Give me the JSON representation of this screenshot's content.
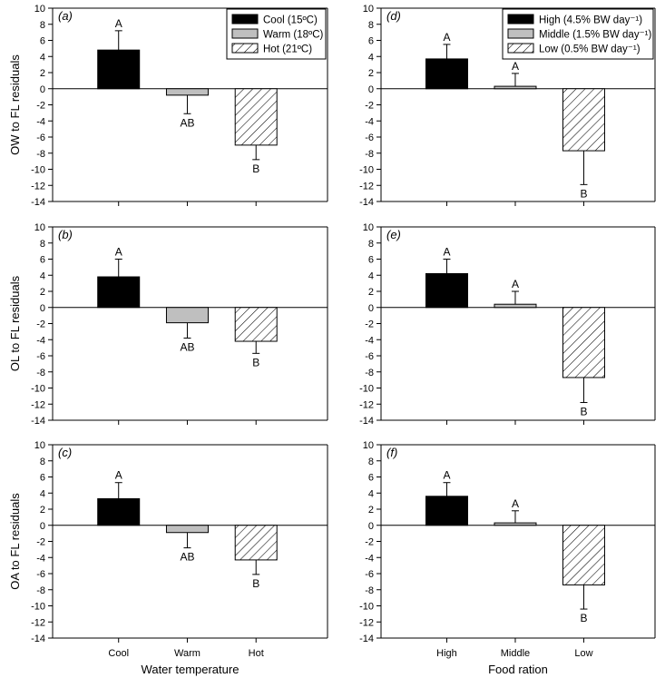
{
  "colors": {
    "series_fill": [
      "#000000",
      "#bfbfbf",
      "hatched"
    ],
    "axis": "#000000"
  },
  "chart_data": [
    {
      "type": "bar",
      "panel_label": "(a)",
      "ylabel": "OW to FL residuals",
      "xlabel": "",
      "categories": [
        "Cool",
        "Warm",
        "Hot"
      ],
      "show_xticklabels": false,
      "ylim": [
        -14,
        10
      ],
      "yticks": [
        10,
        8,
        6,
        4,
        2,
        0,
        -2,
        -4,
        -6,
        -8,
        -10,
        -12,
        -14
      ],
      "values": [
        4.8,
        -0.8,
        -7.0
      ],
      "errors": [
        2.4,
        2.3,
        1.8
      ],
      "letters": [
        "A",
        "AB",
        "B"
      ],
      "legend": [
        "Cool (15ºC)",
        "Warm (18ºC)",
        "Hot (21ºC)"
      ],
      "legend_position": "top-right",
      "grid": false
    },
    {
      "type": "bar",
      "panel_label": "(b)",
      "ylabel": "OL to FL residuals",
      "xlabel": "",
      "categories": [
        "Cool",
        "Warm",
        "Hot"
      ],
      "show_xticklabels": false,
      "ylim": [
        -14,
        10
      ],
      "yticks": [
        10,
        8,
        6,
        4,
        2,
        0,
        -2,
        -4,
        -6,
        -8,
        -10,
        -12,
        -14
      ],
      "values": [
        3.8,
        -1.9,
        -4.2
      ],
      "errors": [
        2.2,
        1.9,
        1.5
      ],
      "letters": [
        "A",
        "AB",
        "B"
      ],
      "grid": false
    },
    {
      "type": "bar",
      "panel_label": "(c)",
      "ylabel": "OA to FL residuals",
      "xlabel": "Water temperature",
      "categories": [
        "Cool",
        "Warm",
        "Hot"
      ],
      "show_xticklabels": true,
      "ylim": [
        -14,
        10
      ],
      "yticks": [
        10,
        8,
        6,
        4,
        2,
        0,
        -2,
        -4,
        -6,
        -8,
        -10,
        -12,
        -14
      ],
      "values": [
        3.3,
        -0.9,
        -4.3
      ],
      "errors": [
        2.0,
        1.9,
        1.8
      ],
      "letters": [
        "A",
        "AB",
        "B"
      ],
      "grid": false
    },
    {
      "type": "bar",
      "panel_label": "(d)",
      "ylabel": "",
      "xlabel": "",
      "categories": [
        "High",
        "Middle",
        "Low"
      ],
      "show_xticklabels": false,
      "ylim": [
        -14,
        10
      ],
      "yticks": [
        10,
        8,
        6,
        4,
        2,
        0,
        -2,
        -4,
        -6,
        -8,
        -10,
        -12,
        -14
      ],
      "values": [
        3.7,
        0.3,
        -7.7
      ],
      "errors": [
        1.8,
        1.6,
        4.2
      ],
      "letters": [
        "A",
        "A",
        "B"
      ],
      "legend": [
        "High (4.5% BW day⁻¹)",
        "Middle (1.5% BW day⁻¹)",
        "Low (0.5% BW day⁻¹)"
      ],
      "legend_position": "top-right",
      "grid": false
    },
    {
      "type": "bar",
      "panel_label": "(e)",
      "ylabel": "",
      "xlabel": "",
      "categories": [
        "High",
        "Middle",
        "Low"
      ],
      "show_xticklabels": false,
      "ylim": [
        -14,
        10
      ],
      "yticks": [
        10,
        8,
        6,
        4,
        2,
        0,
        -2,
        -4,
        -6,
        -8,
        -10,
        -12,
        -14
      ],
      "values": [
        4.2,
        0.4,
        -8.7
      ],
      "errors": [
        1.8,
        1.6,
        3.1
      ],
      "letters": [
        "A",
        "A",
        "B"
      ],
      "grid": false
    },
    {
      "type": "bar",
      "panel_label": "(f)",
      "ylabel": "",
      "xlabel": "Food ration",
      "categories": [
        "High",
        "Middle",
        "Low"
      ],
      "show_xticklabels": true,
      "ylim": [
        -14,
        10
      ],
      "yticks": [
        10,
        8,
        6,
        4,
        2,
        0,
        -2,
        -4,
        -6,
        -8,
        -10,
        -12,
        -14
      ],
      "values": [
        3.6,
        0.3,
        -7.4
      ],
      "errors": [
        1.7,
        1.5,
        3.0
      ],
      "letters": [
        "A",
        "A",
        "B"
      ],
      "grid": false
    }
  ]
}
